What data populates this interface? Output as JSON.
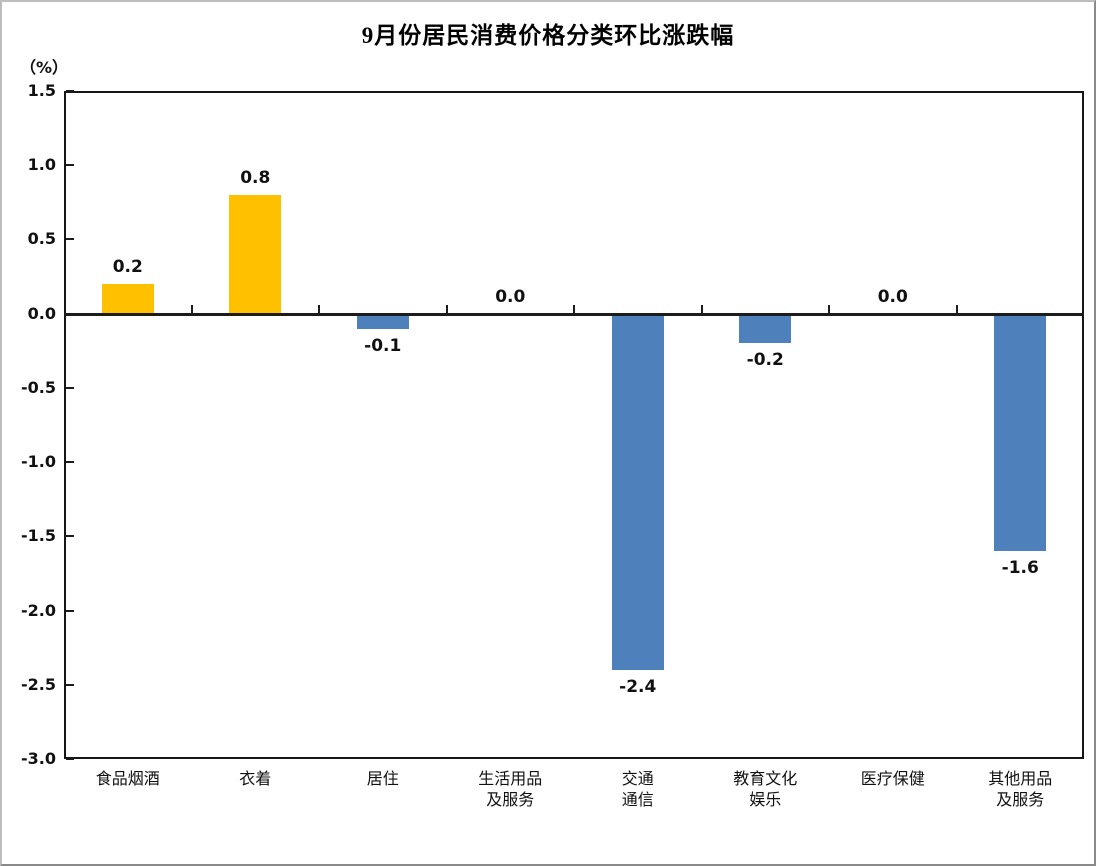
{
  "title": "9月份居民消费价格分类环比涨跌幅",
  "unit_label": "（%）",
  "chart_data": {
    "type": "bar",
    "title": "9月份居民消费价格分类环比涨跌幅",
    "ylabel": "（%）",
    "categories": [
      "食品烟酒",
      "衣着",
      "居住",
      "生活用品\n及服务",
      "交通\n通信",
      "教育文化\n娱乐",
      "医疗保健",
      "其他用品\n及服务"
    ],
    "values": [
      0.2,
      0.8,
      -0.1,
      0.0,
      -2.4,
      -0.2,
      0.0,
      -1.6
    ],
    "value_labels": [
      "0.2",
      "0.8",
      "-0.1",
      "0.0",
      "-2.4",
      "-0.2",
      "0.0",
      "-1.6"
    ],
    "ylim": [
      -3.0,
      1.5
    ],
    "ytick_step": 0.5,
    "ytick_labels": [
      "1.5",
      "1.0",
      "0.5",
      "0.0",
      "-0.5",
      "-1.0",
      "-1.5",
      "-2.0",
      "-2.5",
      "-3.0"
    ],
    "grid": false,
    "legend": "none",
    "positive_color": "#FFC000",
    "negative_color": "#4E80BC"
  }
}
